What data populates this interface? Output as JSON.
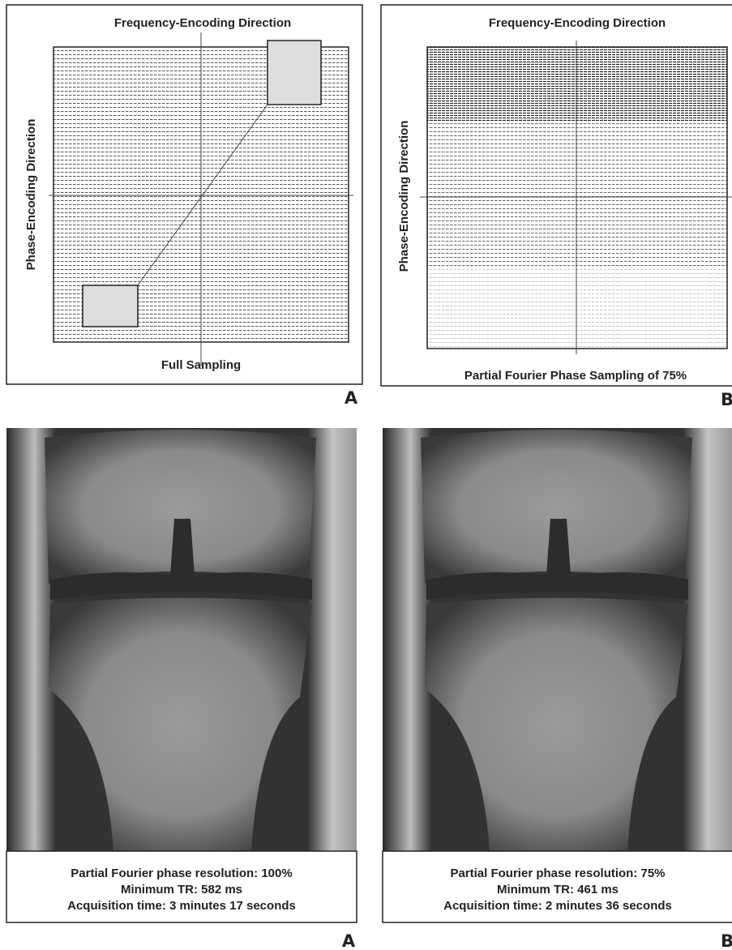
{
  "top_figure": {
    "panel_a": {
      "top_label": "Frequency-Encoding Direction",
      "side_label": "Phase-Encoding Direction",
      "bottom_label": "Full Sampling",
      "letter": "A"
    },
    "panel_b": {
      "top_label": "Frequency-Encoding Direction",
      "side_label": "Phase-Encoding Direction",
      "bottom_label": "Partial Fourier Phase Sampling of 75%",
      "letter": "B"
    }
  },
  "bottom_figure": {
    "panel_a": {
      "caption": [
        "Partial Fourier phase resolution: 100%",
        "Minimum TR: 582 ms",
        "Acquisition time: 3 minutes 17 seconds"
      ],
      "letter": "A"
    },
    "panel_b": {
      "caption": [
        "Partial Fourier phase resolution: 75%",
        "Minimum TR: 461 ms",
        "Acquisition time: 2 minutes 36 seconds"
      ],
      "letter": "B"
    }
  }
}
